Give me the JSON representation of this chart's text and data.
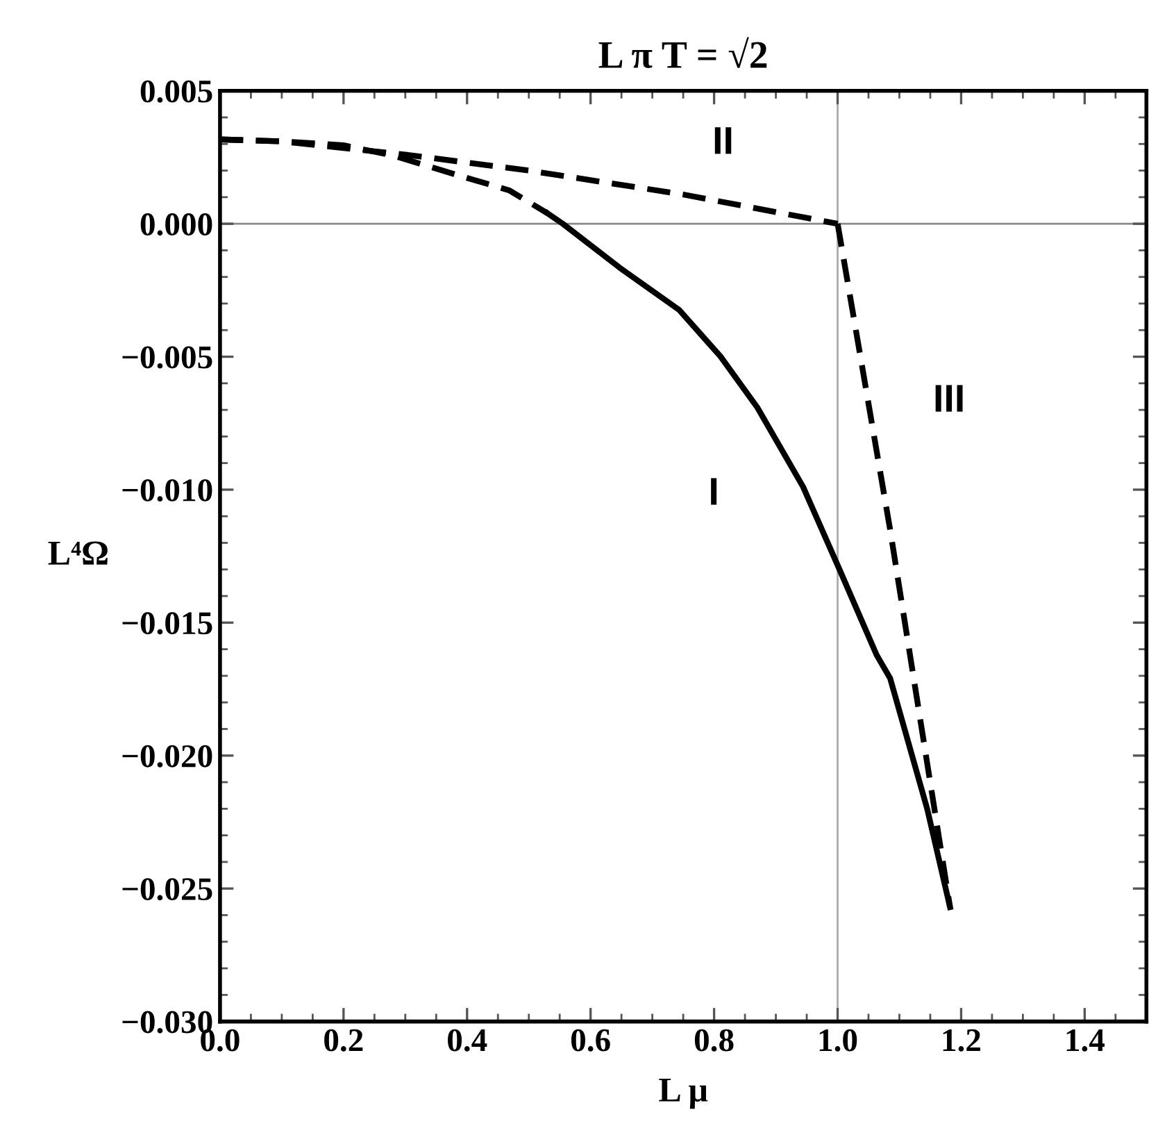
{
  "chart_data": {
    "type": "line",
    "title": "L π T = √2",
    "xlabel": "L μ",
    "ylabel": "L⁴Ω",
    "xlim": [
      0,
      1.5
    ],
    "ylim": [
      -0.03,
      0.005
    ],
    "xticks": [
      {
        "value": 0,
        "label": "0.0"
      },
      {
        "value": 0.2,
        "label": "0.2"
      },
      {
        "value": 0.4,
        "label": "0.4"
      },
      {
        "value": 0.6,
        "label": "0.6"
      },
      {
        "value": 0.8,
        "label": "0.8"
      },
      {
        "value": 1,
        "label": "1.0"
      },
      {
        "value": 1.2,
        "label": "1.2"
      },
      {
        "value": 1.4,
        "label": "1.4"
      }
    ],
    "yticks": [
      {
        "value": 0.005,
        "label": "0.005"
      },
      {
        "value": 0,
        "label": "0.000"
      },
      {
        "value": -0.005,
        "label": "−0.005"
      },
      {
        "value": -0.01,
        "label": "−0.010"
      },
      {
        "value": -0.015,
        "label": "−0.015"
      },
      {
        "value": -0.02,
        "label": "−0.020"
      },
      {
        "value": -0.025,
        "label": "−0.025"
      },
      {
        "value": -0.03,
        "label": "−0.030"
      }
    ],
    "grid": false,
    "legend": false,
    "marker": "none",
    "series": [
      {
        "color": "#000000",
        "line_style": "dashed",
        "x": [
          0,
          0.1,
          0.2,
          0.281,
          0.393,
          0.468,
          0.53
        ],
        "values": [
          0.00317,
          0.0031,
          0.00295,
          0.00256,
          0.00177,
          0.00126,
          0.0004
        ]
      },
      {
        "color": "#000000",
        "line_style": "solid",
        "x": [
          0.53,
          0.555,
          0.647,
          0.743,
          0.81,
          0.87,
          0.944,
          1.004,
          1.063,
          1.085,
          1.145,
          1.182
        ],
        "values": [
          0.0004,
          0,
          -0.00165,
          -0.00323,
          -0.00498,
          -0.00691,
          -0.00989,
          -0.01305,
          -0.01621,
          -0.01709,
          -0.022,
          -0.0257
        ]
      },
      {
        "color": "#000000",
        "line_style": "dashed",
        "x": [
          0,
          0.1,
          0.2,
          0.3,
          0.5,
          0.75,
          1.0
        ],
        "values": [
          0.00317,
          0.0031,
          0.00285,
          0.0026,
          0.002,
          0.0011,
          0
        ]
      },
      {
        "color": "#000000",
        "line_style": "dashed",
        "x": [
          1.0,
          1.085,
          1.182
        ],
        "values": [
          0,
          -0.0115,
          -0.0257
        ]
      }
    ],
    "ref_lines": [
      {
        "axis": "x",
        "value": 1.0,
        "color": "#aaaaaa"
      },
      {
        "axis": "y",
        "value": 0,
        "color": "#888888"
      }
    ],
    "annotations": [
      "II",
      "III",
      "I"
    ]
  }
}
